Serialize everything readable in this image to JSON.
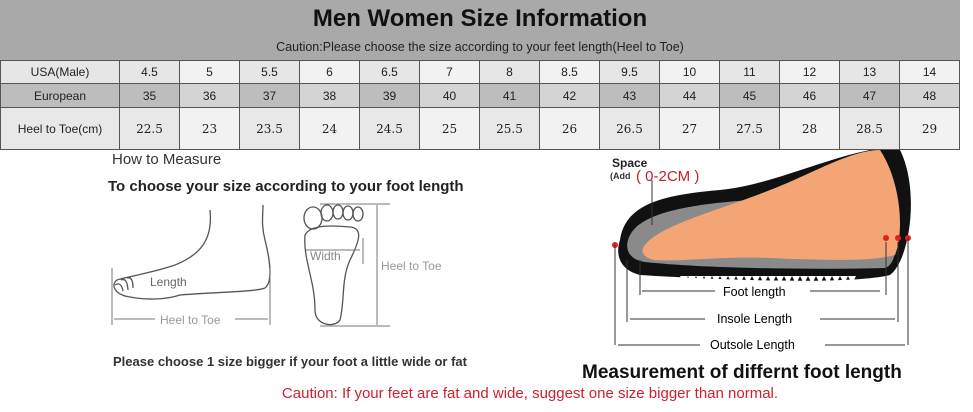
{
  "header": {
    "title": "Men Women Size Information",
    "subtitle": "Caution:Please choose the size according to your feet length(Heel to Toe)"
  },
  "size_table": {
    "rows": [
      {
        "label": "USA(Male)",
        "values": [
          "4.5",
          "5",
          "5.5",
          "6",
          "6.5",
          "7",
          "8",
          "8.5",
          "9.5",
          "10",
          "11",
          "12",
          "13",
          "14"
        ]
      },
      {
        "label": "European",
        "values": [
          "35",
          "36",
          "37",
          "38",
          "39",
          "40",
          "41",
          "42",
          "43",
          "44",
          "45",
          "46",
          "47",
          "48"
        ]
      },
      {
        "label": "Heel to Toe(cm)",
        "values": [
          "22.5",
          "23",
          "23.5",
          "24",
          "24.5",
          "25",
          "25.5",
          "26",
          "26.5",
          "27",
          "27.5",
          "28",
          "28.5",
          "29"
        ]
      }
    ]
  },
  "how_to": {
    "heading": "How to Measure",
    "subheading": "To choose your size according to your foot length",
    "side_length_label": "Length",
    "side_heel_to_toe_label": "Heel to Toe",
    "sole_width_label": "Width",
    "sole_heel_to_toe_label": "Heel to Toe",
    "note": "Please choose 1 size bigger if your foot a little wide or fat"
  },
  "shoe_diagram": {
    "space_label": "Space",
    "add_label": "(Add",
    "add_value": "( 0-2CM  )",
    "foot_length": "Foot length",
    "insole_length": "Insole Length",
    "outsole_length": "Outsole Length",
    "caption": "Measurement of differnt foot length"
  },
  "caution": "Caution: If your feet are fat and wide, suggest one size bigger than normal.",
  "colors": {
    "header_bg": "#a9a9a9",
    "caution": "#d0202a",
    "skin": "#f4a576"
  }
}
